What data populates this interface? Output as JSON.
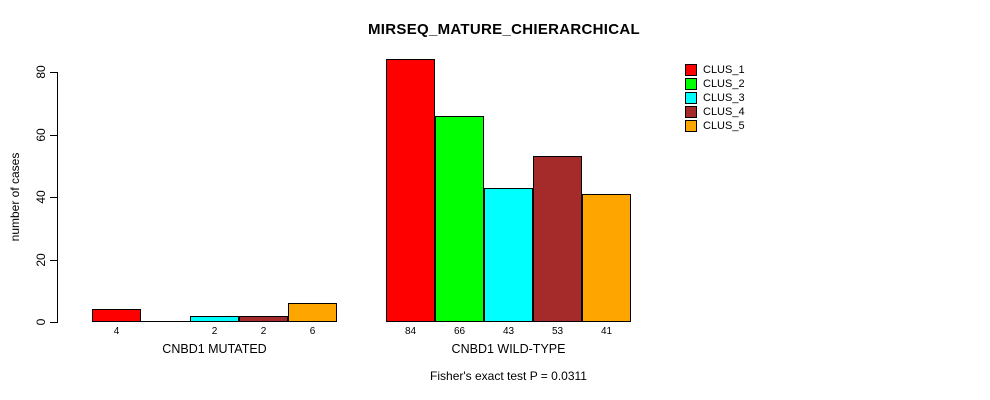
{
  "chart_data": {
    "type": "bar",
    "title": "MIRSEQ_MATURE_CHIERARCHICAL",
    "ylabel": "number of cases",
    "xlabel": "",
    "ylim": [
      0,
      80
    ],
    "yticks": [
      "0",
      "20",
      "40",
      "60",
      "80"
    ],
    "grid": false,
    "legend_position": "top-right",
    "series": [
      {
        "name": "CLUS_1",
        "color": "#FF0000"
      },
      {
        "name": "CLUS_2",
        "color": "#00FF00"
      },
      {
        "name": "CLUS_3",
        "color": "#00FFFF"
      },
      {
        "name": "CLUS_4",
        "color": "#A52A2A"
      },
      {
        "name": "CLUS_5",
        "color": "#FFA500"
      }
    ],
    "groups": [
      {
        "label": "CNBD1 MUTATED",
        "values": [
          4,
          0,
          2,
          2,
          6
        ],
        "bar_labels": [
          "4",
          "",
          "2",
          "2",
          "6"
        ]
      },
      {
        "label": "CNBD1 WILD-TYPE",
        "values": [
          84,
          66,
          43,
          53,
          41
        ],
        "bar_labels": [
          "84",
          "66",
          "43",
          "53",
          "41"
        ]
      }
    ],
    "annotation": "Fisher's exact test P = 0.0311"
  }
}
